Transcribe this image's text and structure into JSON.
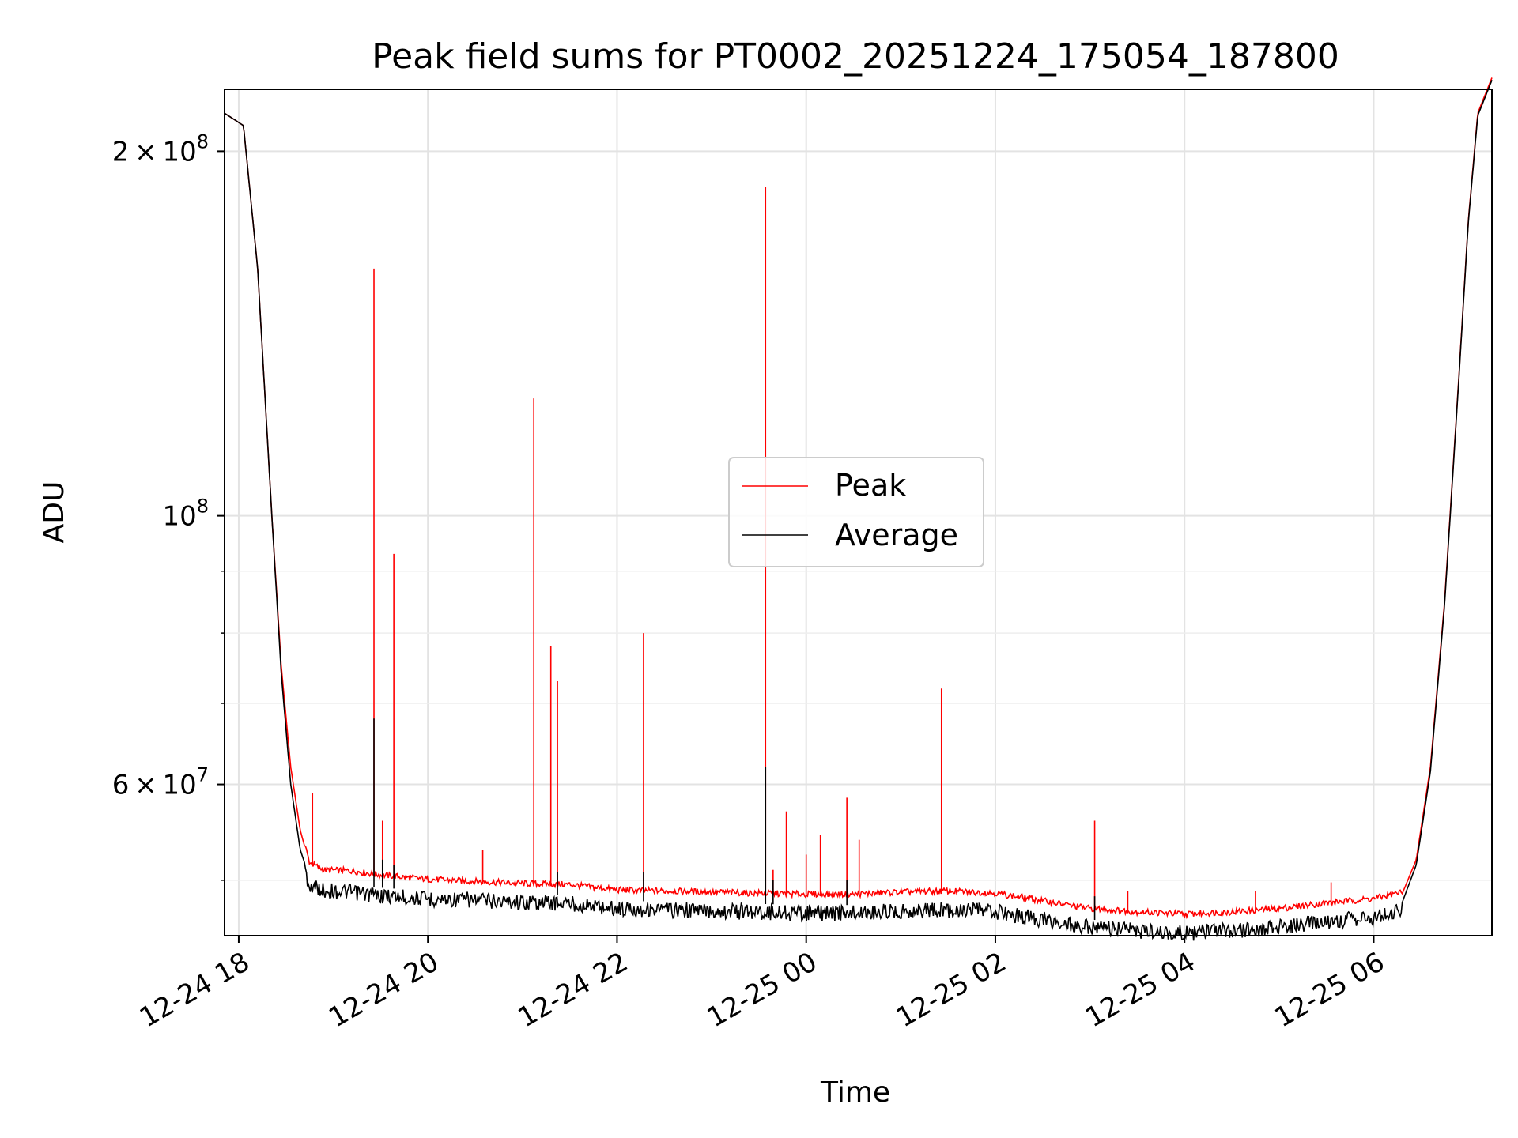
{
  "chart_data": {
    "type": "line",
    "title": "Peak field sums for PT0002_20251224_175054_187800",
    "xlabel": "Time",
    "ylabel": "ADU",
    "yscale": "log",
    "grid": true,
    "legend_position": "center",
    "x_unit": "hours since 12-24 18:00",
    "xlim": [
      -0.15,
      13.25
    ],
    "ylim": [
      45000000,
      225000000
    ],
    "x_ticks": [
      {
        "value": 0,
        "label": "12-24 18"
      },
      {
        "value": 2,
        "label": "12-24 20"
      },
      {
        "value": 4,
        "label": "12-24 22"
      },
      {
        "value": 6,
        "label": "12-25 00"
      },
      {
        "value": 8,
        "label": "12-25 02"
      },
      {
        "value": 10,
        "label": "12-25 04"
      },
      {
        "value": 12,
        "label": "12-25 06"
      }
    ],
    "y_ticks_major": [
      {
        "value": 60000000,
        "mant": "6",
        "label": "6 × 10^7"
      },
      {
        "value": 100000000,
        "mant": "",
        "label": "10^8"
      },
      {
        "value": 200000000,
        "mant": "2",
        "label": "2 × 10^8"
      }
    ],
    "y_ticks_minor": [
      50000000,
      70000000,
      80000000,
      90000000
    ],
    "series": [
      {
        "name": "Peak",
        "color": "#ff0000",
        "baseline_x": [
          -0.15,
          0.05,
          0.2,
          0.35,
          0.45,
          0.55,
          0.65,
          0.75,
          0.9,
          1.2,
          1.5,
          2.0,
          2.5,
          3.0,
          3.5,
          4.0,
          5.0,
          5.5,
          6.0,
          6.5,
          7.0,
          7.5,
          8.0,
          8.5,
          9.0,
          9.5,
          10.0,
          10.5,
          11.0,
          11.5,
          12.0,
          12.3,
          12.45,
          12.6,
          12.75,
          12.9,
          13.0,
          13.1,
          13.25
        ],
        "baseline_y": [
          215000000,
          210000000,
          160000000,
          100000000,
          75000000,
          62000000,
          55000000,
          51500000,
          50800000,
          50700000,
          50300000,
          49900000,
          49700000,
          49500000,
          49400000,
          48900000,
          48700000,
          48600000,
          48500000,
          48500000,
          48700000,
          48800000,
          48600000,
          47900000,
          47200000,
          46900000,
          46700000,
          46900000,
          47200000,
          47700000,
          48100000,
          48700000,
          52000000,
          62000000,
          85000000,
          130000000,
          175000000,
          215000000,
          230000000
        ],
        "spikes": [
          {
            "x": 0.78,
            "y": 59000000
          },
          {
            "x": 1.43,
            "y": 160000000
          },
          {
            "x": 1.52,
            "y": 56000000
          },
          {
            "x": 1.64,
            "y": 93000000
          },
          {
            "x": 2.58,
            "y": 53000000
          },
          {
            "x": 3.12,
            "y": 125000000
          },
          {
            "x": 3.3,
            "y": 78000000
          },
          {
            "x": 3.37,
            "y": 73000000
          },
          {
            "x": 4.28,
            "y": 80000000
          },
          {
            "x": 5.57,
            "y": 187000000
          },
          {
            "x": 5.65,
            "y": 51000000
          },
          {
            "x": 5.79,
            "y": 57000000
          },
          {
            "x": 6.0,
            "y": 52500000
          },
          {
            "x": 6.15,
            "y": 54500000
          },
          {
            "x": 6.43,
            "y": 58500000
          },
          {
            "x": 6.56,
            "y": 54000000
          },
          {
            "x": 7.43,
            "y": 72000000
          },
          {
            "x": 9.05,
            "y": 56000000
          },
          {
            "x": 9.4,
            "y": 49000000
          },
          {
            "x": 10.75,
            "y": 49000000
          },
          {
            "x": 11.55,
            "y": 49800000
          }
        ]
      },
      {
        "name": "Average",
        "color": "#000000",
        "baseline_x": [
          -0.15,
          0.05,
          0.2,
          0.35,
          0.45,
          0.55,
          0.65,
          0.75,
          0.9,
          1.2,
          1.5,
          2.0,
          2.5,
          3.0,
          3.5,
          4.0,
          5.0,
          5.5,
          6.0,
          6.5,
          7.0,
          7.5,
          8.0,
          8.5,
          9.0,
          9.5,
          10.0,
          10.5,
          11.0,
          11.5,
          12.0,
          12.3,
          12.45,
          12.6,
          12.75,
          12.9,
          13.0,
          13.1,
          13.25
        ],
        "baseline_y": [
          215000000,
          210000000,
          160000000,
          100000000,
          74000000,
          60000000,
          53000000,
          50200000,
          49800000,
          49600000,
          49300000,
          49000000,
          48900000,
          48700000,
          48600000,
          48100000,
          47900000,
          47800000,
          47700000,
          47700000,
          47900000,
          48000000,
          47800000,
          47100000,
          46400000,
          46100000,
          45900000,
          46100000,
          46400000,
          46900000,
          47300000,
          47900000,
          51500000,
          61500000,
          84500000,
          129500000,
          174500000,
          214000000,
          229000000
        ],
        "spikes": [
          {
            "x": 1.43,
            "y": 68000000
          },
          {
            "x": 1.52,
            "y": 52000000
          },
          {
            "x": 1.64,
            "y": 51500000
          },
          {
            "x": 3.37,
            "y": 50800000
          },
          {
            "x": 4.28,
            "y": 50800000
          },
          {
            "x": 5.57,
            "y": 62000000
          },
          {
            "x": 5.65,
            "y": 50000000
          },
          {
            "x": 6.43,
            "y": 50000000
          },
          {
            "x": 9.05,
            "y": 48500000
          }
        ]
      }
    ]
  }
}
